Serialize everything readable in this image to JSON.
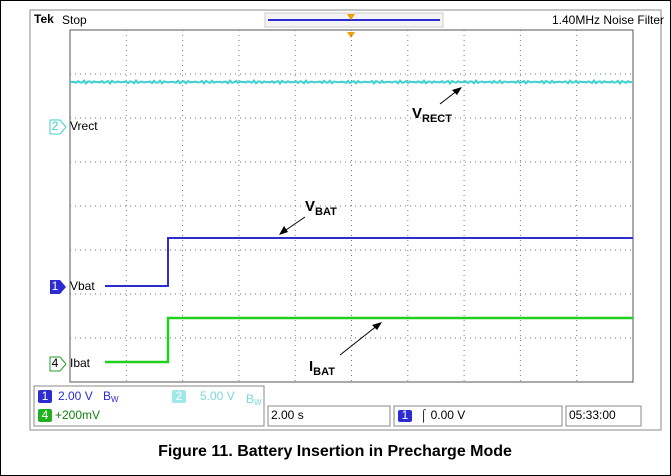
{
  "header": {
    "brand": "Tek",
    "status": "Stop",
    "filter": "1.40MHz Noise Filter"
  },
  "channels": [
    {
      "number": "2",
      "label": "Vrect"
    },
    {
      "number": "1",
      "label": "Vbat"
    },
    {
      "number": "4",
      "label": "Ibat"
    }
  ],
  "annotations": [
    {
      "main": "V",
      "sub": "RECT"
    },
    {
      "main": "V",
      "sub": "BAT"
    },
    {
      "main": "I",
      "sub": "BAT"
    }
  ],
  "readouts": {
    "ch1": {
      "number": "1",
      "scale": "2.00 V",
      "bw": "B",
      "bw_sub": "W"
    },
    "ch2": {
      "number": "2",
      "scale": "5.00 V",
      "bw": "B",
      "bw_sub": "W"
    },
    "ch4": {
      "number": "4",
      "scale": "+200mV"
    },
    "timebase": "2.00 s",
    "trigger": {
      "number": "1",
      "level": "⌠ 0.00 V"
    },
    "clock": "05:33:00"
  },
  "caption": "Figure 11. Battery Insertion in Precharge Mode"
}
